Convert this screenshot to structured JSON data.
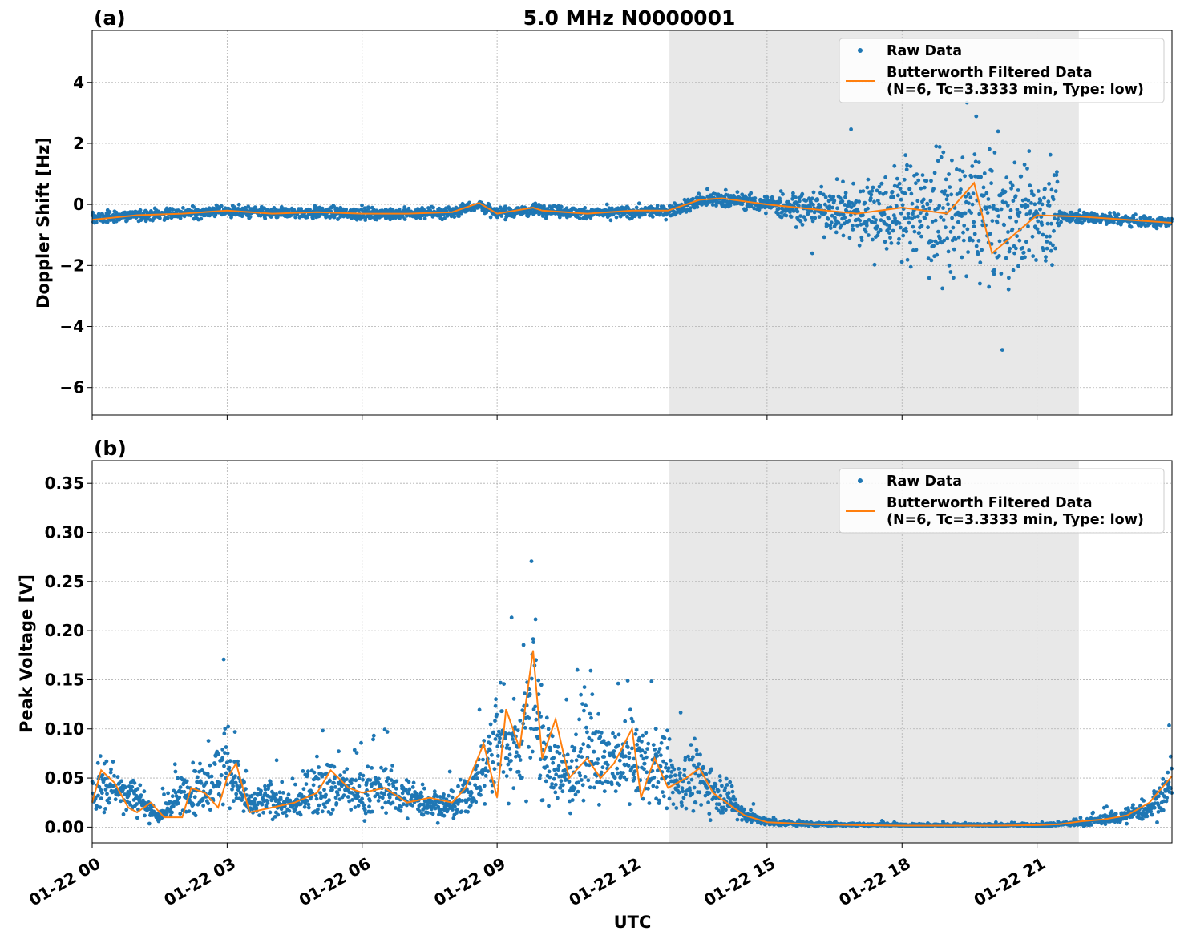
{
  "chart_data": [
    {
      "type": "scatter",
      "panel_label": "(a)",
      "title": "5.0 MHz N0000001",
      "xlabel": "",
      "ylabel": "Doppler Shift [Hz]",
      "xlim_hours": [
        0,
        24
      ],
      "ylim": [
        -6.9,
        5.7
      ],
      "yticks": [
        4,
        2,
        0,
        -2,
        -4,
        -6
      ],
      "ytick_labels": [
        "4",
        "2",
        "0",
        "−2",
        "−4",
        "−6"
      ],
      "grid": true,
      "legend_position": "top-right",
      "shaded_band_hours": [
        12.83,
        21.93
      ],
      "series": [
        {
          "name": "Raw Data",
          "kind": "points",
          "color": "#1f77b4",
          "x": [
            0.0,
            1.0,
            1.6,
            2.0,
            3.0,
            4.0,
            5.0,
            6.0,
            7.0,
            8.0,
            8.6,
            9.0,
            10.0,
            11.0,
            12.0,
            12.8,
            13.5,
            14.0,
            15.0,
            16.0,
            17.0,
            18.0,
            19.0,
            19.5,
            20.0,
            21.0,
            22.0,
            23.0,
            24.0
          ],
          "y": [
            -0.45,
            -0.35,
            -0.3,
            -0.3,
            -0.2,
            -0.3,
            -0.25,
            -0.3,
            -0.3,
            -0.25,
            0.0,
            -0.3,
            -0.15,
            -0.3,
            -0.25,
            -0.2,
            0.1,
            0.2,
            0.0,
            -0.1,
            -0.3,
            -0.2,
            -0.3,
            -0.2,
            -0.5,
            -0.35,
            -0.4,
            -0.5,
            -0.6
          ]
        },
        {
          "name": "Butterworth Filtered Data\n(N=6, Tc=3.3333 min, Type: low)",
          "kind": "line",
          "color": "#ff7f0e",
          "x": [
            0.0,
            1.0,
            2.0,
            3.0,
            4.0,
            5.0,
            6.0,
            7.0,
            8.0,
            8.6,
            9.0,
            9.8,
            10.0,
            11.0,
            12.0,
            12.8,
            13.5,
            14.0,
            15.0,
            16.0,
            17.0,
            18.0,
            19.0,
            19.6,
            20.0,
            21.0,
            22.0,
            23.0,
            24.0
          ],
          "y": [
            -0.5,
            -0.35,
            -0.3,
            -0.2,
            -0.3,
            -0.25,
            -0.3,
            -0.3,
            -0.25,
            0.05,
            -0.3,
            -0.1,
            -0.2,
            -0.3,
            -0.2,
            -0.2,
            0.15,
            0.2,
            0.0,
            -0.15,
            -0.3,
            -0.1,
            -0.3,
            0.7,
            -1.6,
            -0.35,
            -0.4,
            -0.5,
            -0.6
          ]
        }
      ],
      "legend": [
        "Raw Data",
        "Butterworth Filtered Data",
        "(N=6, Tc=3.3333 min, Type: low)"
      ]
    },
    {
      "type": "scatter",
      "panel_label": "(b)",
      "title": "",
      "xlabel": "UTC",
      "ylabel": "Peak Voltage [V]",
      "xlim_hours": [
        0,
        24
      ],
      "ylim": [
        -0.016,
        0.373
      ],
      "yticks": [
        0.35,
        0.3,
        0.25,
        0.2,
        0.15,
        0.1,
        0.05,
        0.0
      ],
      "ytick_labels": [
        "0.35",
        "0.30",
        "0.25",
        "0.20",
        "0.15",
        "0.10",
        "0.05",
        "0.00"
      ],
      "xticks_hours": [
        0,
        3,
        6,
        9,
        12,
        15,
        18,
        21
      ],
      "xtick_labels": [
        "01-22 00",
        "01-22 03",
        "01-22 06",
        "01-22 09",
        "01-22 12",
        "01-22 15",
        "01-22 18",
        "01-22 21"
      ],
      "grid": true,
      "legend_position": "top-right",
      "shaded_band_hours": [
        12.83,
        21.93
      ],
      "series": [
        {
          "name": "Raw Data",
          "kind": "points",
          "color": "#1f77b4",
          "x": [
            0.0,
            0.2,
            0.5,
            1.0,
            1.5,
            2.0,
            2.5,
            3.0,
            3.5,
            4.0,
            4.5,
            5.0,
            5.5,
            6.0,
            6.5,
            7.0,
            7.5,
            8.0,
            8.5,
            9.0,
            9.5,
            9.8,
            10.0,
            10.5,
            11.0,
            11.5,
            12.0,
            12.5,
            13.0,
            13.5,
            14.0,
            14.5,
            15.0,
            16.0,
            18.0,
            20.0,
            21.0,
            22.0,
            22.5,
            23.0,
            23.5,
            24.0
          ],
          "y": [
            0.03,
            0.05,
            0.04,
            0.03,
            0.01,
            0.035,
            0.04,
            0.065,
            0.02,
            0.03,
            0.02,
            0.045,
            0.04,
            0.035,
            0.04,
            0.03,
            0.025,
            0.02,
            0.04,
            0.09,
            0.08,
            0.15,
            0.07,
            0.05,
            0.08,
            0.06,
            0.07,
            0.06,
            0.045,
            0.05,
            0.035,
            0.012,
            0.005,
            0.003,
            0.002,
            0.002,
            0.002,
            0.004,
            0.008,
            0.012,
            0.02,
            0.04
          ]
        },
        {
          "name": "Butterworth Filtered Data\n(N=6, Tc=3.3333 min, Type: low)",
          "kind": "line",
          "color": "#ff7f0e",
          "x": [
            0.0,
            0.2,
            0.5,
            0.8,
            1.0,
            1.3,
            1.6,
            2.0,
            2.2,
            2.5,
            2.8,
            3.0,
            3.2,
            3.5,
            4.0,
            4.5,
            5.0,
            5.3,
            5.7,
            6.0,
            6.5,
            7.0,
            7.5,
            8.0,
            8.3,
            8.7,
            9.0,
            9.2,
            9.5,
            9.8,
            10.0,
            10.3,
            10.6,
            11.0,
            11.3,
            11.6,
            12.0,
            12.2,
            12.5,
            12.8,
            13.2,
            13.5,
            13.8,
            14.0,
            14.5,
            15.0,
            16.0,
            17.0,
            18.0,
            19.0,
            20.0,
            21.0,
            21.5,
            22.0,
            22.5,
            23.0,
            23.5,
            24.0
          ],
          "y": [
            0.025,
            0.058,
            0.045,
            0.02,
            0.015,
            0.025,
            0.01,
            0.01,
            0.04,
            0.035,
            0.02,
            0.05,
            0.065,
            0.015,
            0.02,
            0.025,
            0.035,
            0.058,
            0.04,
            0.035,
            0.04,
            0.025,
            0.03,
            0.025,
            0.04,
            0.085,
            0.03,
            0.12,
            0.08,
            0.18,
            0.07,
            0.11,
            0.05,
            0.07,
            0.05,
            0.065,
            0.1,
            0.03,
            0.07,
            0.04,
            0.05,
            0.06,
            0.035,
            0.028,
            0.012,
            0.005,
            0.003,
            0.002,
            0.0015,
            0.0015,
            0.0015,
            0.002,
            0.003,
            0.006,
            0.008,
            0.012,
            0.025,
            0.052
          ]
        }
      ],
      "legend": [
        "Raw Data",
        "Butterworth Filtered Data",
        "(N=6, Tc=3.3333 min, Type: low)"
      ]
    }
  ],
  "colors": {
    "raw": "#1f77b4",
    "filtered": "#ff7f0e",
    "band": "#e8e8e8",
    "grid": "#b0b0b0"
  }
}
